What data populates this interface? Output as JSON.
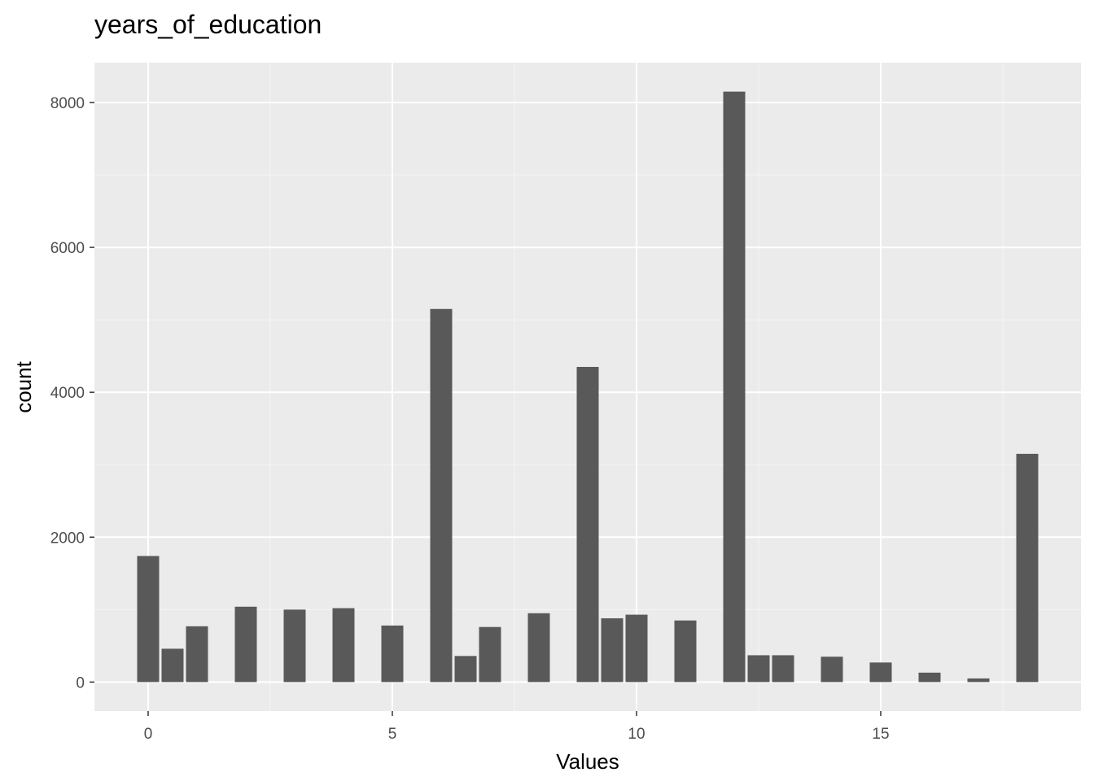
{
  "chart_data": {
    "type": "bar",
    "title": "years_of_education",
    "xlabel": "Values",
    "ylabel": "count",
    "x": [
      0,
      0.5,
      1,
      2,
      3,
      4,
      5,
      6,
      6.5,
      7,
      8,
      9,
      9.5,
      10,
      11,
      12,
      12.5,
      13,
      14,
      15,
      16,
      17,
      18
    ],
    "values": [
      1740,
      460,
      770,
      1040,
      1000,
      1020,
      780,
      5150,
      360,
      760,
      950,
      4350,
      880,
      930,
      850,
      8150,
      370,
      370,
      350,
      270,
      130,
      50,
      3150
    ],
    "xlim": [
      -1.1,
      19.1
    ],
    "ylim": [
      -400,
      8550
    ],
    "x_ticks": [
      "0",
      "5",
      "10",
      "15"
    ],
    "y_ticks": [
      "0",
      "2000",
      "4000",
      "6000",
      "8000"
    ],
    "grid": true,
    "colors": {
      "panel_background": "#ebebeb",
      "grid_major": "#ffffff",
      "grid_minor": "#f5f5f5",
      "bar_fill": "#595959",
      "tick_text": "#4d4d4d",
      "tick_mark": "#333333"
    }
  }
}
